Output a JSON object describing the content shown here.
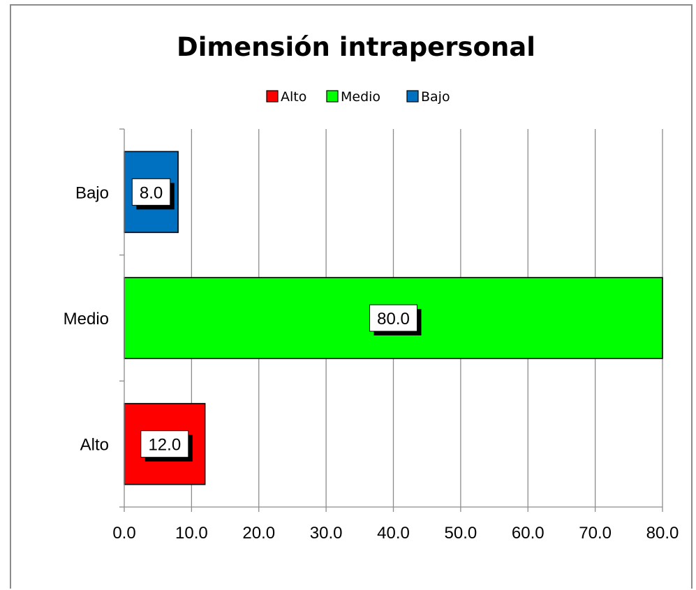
{
  "chart_data": {
    "type": "bar",
    "orientation": "horizontal",
    "title": "Dimensión intrapersonal",
    "categories": [
      "Alto",
      "Medio",
      "Bajo"
    ],
    "values": [
      12.0,
      80.0,
      8.0
    ],
    "data_labels": [
      "12.0",
      "80.0",
      "8.0"
    ],
    "colors": [
      "#ff0000",
      "#00ff00",
      "#0070c0"
    ],
    "legend": {
      "position": "top",
      "entries": [
        "Alto",
        "Medio",
        "Bajo"
      ]
    },
    "xlim": [
      0,
      80
    ],
    "xticks": [
      0,
      10,
      20,
      30,
      40,
      50,
      60,
      70,
      80
    ],
    "xtick_labels": [
      "0.0",
      "10.0",
      "20.0",
      "30.0",
      "40.0",
      "50.0",
      "60.0",
      "70.0",
      "80.0"
    ],
    "grid": "vertical",
    "xlabel": "",
    "ylabel": ""
  }
}
